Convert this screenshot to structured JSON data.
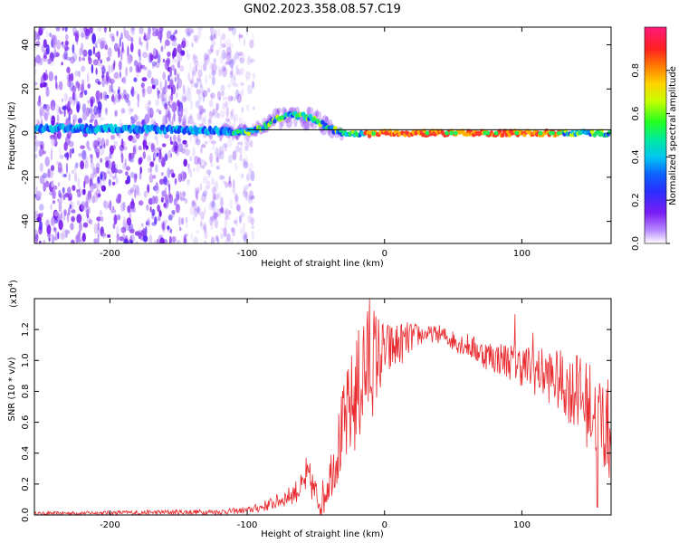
{
  "figure_title": "GN02.2023.358.08.57.C19",
  "chart_data": [
    {
      "type": "heatmap",
      "title": "",
      "xlabel": "Height of straight line (km)",
      "ylabel": "Frequency (Hz)",
      "xlim": [
        -255,
        165
      ],
      "ylim": [
        -50,
        48
      ],
      "xticks": [
        -200,
        -100,
        0,
        100
      ],
      "xtick_labels": [
        "-200",
        "-100",
        "0",
        "100"
      ],
      "yticks": [
        -40,
        -20,
        0,
        20,
        40
      ],
      "ytick_labels": [
        "-40",
        "-20",
        "0",
        "20",
        "40"
      ],
      "colorbar": {
        "label": "Normalized spectral amplitude",
        "range": [
          0,
          1
        ],
        "ticks": [
          0.0,
          0.2,
          0.4,
          0.6,
          0.8
        ],
        "tick_labels": [
          "0.0",
          "0.2",
          "0.4",
          "0.6",
          "0.8"
        ],
        "colormap": "purple-blue-cyan-green-yellow-red-magenta"
      },
      "reference_line_hz": 0,
      "band_center_profile": {
        "x": [
          -255,
          -200,
          -120,
          -100,
          -90,
          -80,
          -70,
          -60,
          -50,
          -40,
          -30,
          -20,
          0,
          100,
          165
        ],
        "y": [
          2,
          2,
          1,
          0.5,
          2,
          6,
          8,
          8,
          6,
          2,
          0,
          -0.5,
          0,
          0,
          0
        ]
      },
      "noise_region_x": [
        -255,
        -110
      ],
      "grid": false,
      "legend": "none"
    },
    {
      "type": "line",
      "title": "",
      "xlabel": "Height of straight line (km)",
      "ylabel": "SNR (10 * v/v)",
      "scale_label": "(x10",
      "scale_exp": "4",
      "scale_close": ")",
      "xlim": [
        -255,
        165
      ],
      "ylim": [
        0,
        1.4
      ],
      "xticks": [
        -200,
        -100,
        0,
        100
      ],
      "xtick_labels": [
        "-200",
        "-100",
        "0",
        "100"
      ],
      "yticks": [
        0,
        0.2,
        0.4,
        0.6,
        0.8,
        1.0,
        1.2
      ],
      "ytick_labels": [
        "0.0",
        "0.2",
        "0.4",
        "0.6",
        "0.8",
        "1.0",
        "1.2"
      ],
      "series": [
        {
          "color": "#e8292d",
          "envelope_x": [
            -255,
            -120,
            -100,
            -90,
            -80,
            -70,
            -60,
            -55,
            -50,
            -45,
            -40,
            -30,
            -20,
            -10,
            0,
            10,
            20,
            30,
            40,
            50,
            60,
            70,
            80,
            90,
            100,
            110,
            120,
            130,
            140,
            150,
            160,
            165
          ],
          "envelope_y": [
            0.01,
            0.02,
            0.03,
            0.05,
            0.08,
            0.12,
            0.18,
            0.25,
            0.12,
            0.1,
            0.25,
            0.55,
            0.8,
            1.0,
            1.05,
            1.1,
            1.15,
            1.17,
            1.17,
            1.13,
            1.1,
            1.05,
            1.02,
            1.0,
            0.97,
            0.93,
            0.9,
            0.85,
            0.78,
            0.7,
            0.6,
            0.5
          ],
          "spread_x": [
            -255,
            -100,
            -70,
            -40,
            -30,
            -20,
            -10,
            0,
            30,
            60,
            90,
            120,
            140,
            150,
            165
          ],
          "spread": [
            0.01,
            0.02,
            0.06,
            0.15,
            0.3,
            0.4,
            0.4,
            0.2,
            0.05,
            0.08,
            0.12,
            0.18,
            0.25,
            0.3,
            0.35
          ],
          "peaks": [
            {
              "x": -57,
              "y": 0.37
            },
            {
              "x": -15,
              "y": 1.22
            },
            {
              "x": -11,
              "y": 1.4
            },
            {
              "x": 25,
              "y": 1.22
            },
            {
              "x": 95,
              "y": 1.3
            },
            {
              "x": 108,
              "y": 1.18
            },
            {
              "x": 140,
              "y": 1.03
            },
            {
              "x": 155,
              "y": 0.05
            }
          ]
        }
      ],
      "grid": false,
      "legend": "none"
    }
  ]
}
